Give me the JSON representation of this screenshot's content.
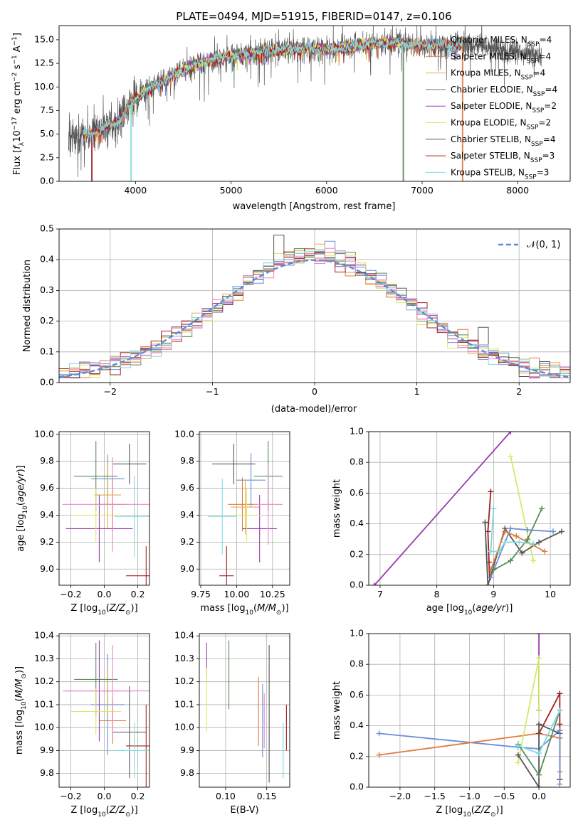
{
  "chart_data": [
    {
      "id": "spectrum",
      "type": "line",
      "title": "PLATE=0494, MJD=51915, FIBERID=0147, z=0.106",
      "xlabel": "wavelength [Angstrom, rest frame]",
      "ylabel": "Flux [f_λ 10^-17 erg cm^-2 s^-1 A^-1]",
      "xlim": [
        3200,
        8550
      ],
      "ylim": [
        0,
        16.5
      ],
      "xticks": [
        4000,
        5000,
        6000,
        7000,
        8000
      ],
      "yticks": [
        0.0,
        2.5,
        5.0,
        7.5,
        10.0,
        12.5,
        15.0
      ],
      "grid": false,
      "legend_position": "right",
      "spectrum_anchor_x": [
        3450,
        3600,
        3800,
        4000,
        4200,
        4400,
        4600,
        4800,
        5000,
        5200,
        5400,
        5600,
        5800,
        6000,
        6200,
        6400,
        6600,
        6800,
        7000,
        7200,
        7400,
        7600,
        7800,
        8000,
        8200,
        8400
      ],
      "spectrum_anchor_y": [
        4.8,
        5.3,
        6.2,
        8.8,
        10.2,
        11.3,
        12.2,
        12.9,
        13.3,
        13.5,
        13.8,
        14.0,
        14.1,
        14.0,
        14.2,
        14.5,
        14.7,
        14.6,
        14.4,
        14.4,
        14.5,
        14.3,
        14.0,
        13.7,
        13.5,
        13.3
      ],
      "series": [
        {
          "name": "Chabrier MILES",
          "nssp": "4",
          "color": "#6a8fd8",
          "x_range": [
            3450,
            7400
          ],
          "dip": null
        },
        {
          "name": "Salpeter MILES",
          "nssp": "4",
          "color": "#e07a3d",
          "x_range": [
            3450,
            7420
          ],
          "dip": 7420
        },
        {
          "name": "Kroupa MILES",
          "nssp": "4",
          "color": "#e8a948",
          "x_range": [
            3450,
            7420
          ],
          "dip": null
        },
        {
          "name": "Chabrier ELODIE",
          "nssp": "4",
          "color": "#5a8a5a",
          "x_range": [
            3900,
            6800
          ],
          "dip": 6800
        },
        {
          "name": "Salpeter ELODIE",
          "nssp": "2",
          "color": "#9a3aac",
          "x_range": [
            3900,
            6800
          ],
          "dip": null
        },
        {
          "name": "Kroupa ELODIE",
          "nssp": "2",
          "color": "#d8e86a",
          "x_range": [
            3900,
            6800
          ],
          "dip": 3900
        },
        {
          "name": "Chabrier STELIB",
          "nssp": "4",
          "color": "#555555",
          "x_range": [
            3300,
            8250
          ],
          "dip": null
        },
        {
          "name": "Salpeter STELIB",
          "nssp": "3",
          "color": "#a02020",
          "x_range": [
            3450,
            7420
          ],
          "dip": 3540
        },
        {
          "name": "Kroupa STELIB",
          "nssp": "3",
          "color": "#7fd8e0",
          "x_range": [
            3450,
            7420
          ],
          "dip": 3950
        }
      ]
    },
    {
      "id": "residuals",
      "type": "histogram",
      "xlabel": "(data-model)/error",
      "ylabel": "Normed distribution",
      "xlim": [
        -2.5,
        2.5
      ],
      "ylim": [
        0,
        0.5
      ],
      "xticks": [
        -2,
        -1,
        0,
        1,
        2
      ],
      "yticks": [
        0.0,
        0.1,
        0.2,
        0.3,
        0.4,
        0.5
      ],
      "grid": true,
      "legend_position": "top-right",
      "legend_label": "𝒩(0, 1)",
      "bin_width": 0.1,
      "bin_start": -2.5,
      "highlights": [
        {
          "color": "#555555",
          "x": -0.35,
          "y": 0.48
        },
        {
          "color": "#6a8fd8",
          "x": 0.15,
          "y": 0.46
        },
        {
          "color": "#555555",
          "x": 1.65,
          "y": 0.18
        }
      ]
    },
    {
      "id": "age-vs-z",
      "type": "errorbar",
      "xlabel": "Z [log10(Z/Z☉)]",
      "ylabel": "age [log10(age/yr)]",
      "xlim": [
        -0.27,
        0.27
      ],
      "ylim": [
        8.88,
        10.02
      ],
      "xticks": [
        -0.2,
        0.0,
        0.2
      ],
      "yticks": [
        9.0,
        9.2,
        9.4,
        9.6,
        9.8,
        10.0
      ],
      "points": [
        {
          "color": "#6a8fd8",
          "x": 0.02,
          "xerr": 0.1,
          "y": 9.67,
          "yerr": 0.18
        },
        {
          "color": "#e07a3d",
          "x": 0.05,
          "xerr": 0.08,
          "y": 9.48,
          "yerr": 0.2
        },
        {
          "color": "#e8a948",
          "x": 0.02,
          "xerr": 0.08,
          "y": 9.55,
          "yerr": 0.25
        },
        {
          "color": "#5a8a5a",
          "x": -0.05,
          "xerr": 0.13,
          "y": 9.69,
          "yerr": 0.26
        },
        {
          "color": "#9a3aac",
          "x": -0.03,
          "xerr": 0.2,
          "y": 9.3,
          "yerr": 0.25
        },
        {
          "color": "#d8e86a",
          "x": -0.05,
          "xerr": 0.15,
          "y": 9.4,
          "yerr": 0.2
        },
        {
          "color": "#555555",
          "x": 0.15,
          "xerr": 0.1,
          "y": 9.78,
          "yerr": 0.15
        },
        {
          "color": "#a02020",
          "x": 0.25,
          "xerr": 0.12,
          "y": 8.95,
          "yerr": 0.22
        },
        {
          "color": "#7fd8e0",
          "x": 0.18,
          "xerr": 0.12,
          "y": 9.39,
          "yerr": 0.3
        },
        {
          "color": "#e888c8",
          "x": 0.05,
          "xerr": 0.3,
          "y": 9.48,
          "yerr": 0.35
        }
      ]
    },
    {
      "id": "age-vs-mass",
      "type": "errorbar",
      "xlabel": "mass [log10(M/M☉)]",
      "ylabel": "",
      "xlim": [
        9.74,
        10.37
      ],
      "ylim": [
        8.88,
        10.02
      ],
      "xticks": [
        9.75,
        10.0,
        10.25
      ],
      "yticks": [
        9.0,
        9.2,
        9.4,
        9.6,
        9.8,
        10.0
      ],
      "points": [
        {
          "color": "#6a8fd8",
          "x": 10.1,
          "xerr": 0.1,
          "y": 9.66,
          "yerr": 0.2
        },
        {
          "color": "#e07a3d",
          "x": 10.04,
          "xerr": 0.1,
          "y": 9.48,
          "yerr": 0.2
        },
        {
          "color": "#e8a948",
          "x": 10.06,
          "xerr": 0.1,
          "y": 9.46,
          "yerr": 0.2
        },
        {
          "color": "#5a8a5a",
          "x": 10.22,
          "xerr": 0.1,
          "y": 9.69,
          "yerr": 0.26
        },
        {
          "color": "#9a3aac",
          "x": 10.16,
          "xerr": 0.12,
          "y": 9.3,
          "yerr": 0.25
        },
        {
          "color": "#d8e86a",
          "x": 10.07,
          "xerr": 0.1,
          "y": 9.4,
          "yerr": 0.2
        },
        {
          "color": "#555555",
          "x": 9.98,
          "xerr": 0.15,
          "y": 9.78,
          "yerr": 0.15
        },
        {
          "color": "#a02020",
          "x": 9.93,
          "xerr": 0.05,
          "y": 8.95,
          "yerr": 0.22
        },
        {
          "color": "#7fd8e0",
          "x": 9.9,
          "xerr": 0.1,
          "y": 9.39,
          "yerr": 0.28
        },
        {
          "color": "#e888c8",
          "x": 10.22,
          "xerr": 0.1,
          "y": 9.48,
          "yerr": 0.3
        }
      ]
    },
    {
      "id": "mass-weight-vs-age",
      "type": "line",
      "xlabel": "age [log10(age/yr)]",
      "ylabel": "mass weight",
      "xlim": [
        6.8,
        10.35
      ],
      "ylim": [
        0,
        1.0
      ],
      "xticks": [
        7,
        8,
        9,
        10
      ],
      "yticks": [
        0.0,
        0.2,
        0.4,
        0.6,
        0.8,
        1.0
      ],
      "grid": true,
      "series": [
        {
          "color": "#9a3aac",
          "x": [
            6.9,
            9.3
          ],
          "y": [
            0.0,
            1.0
          ]
        },
        {
          "color": "#d8e86a",
          "x": [
            9.3,
            9.7
          ],
          "y": [
            0.84,
            0.16
          ]
        },
        {
          "color": "#a02020",
          "x": [
            8.95,
            8.9,
            8.92,
            8.93
          ],
          "y": [
            0.61,
            0.35,
            0.15,
            0.05
          ]
        },
        {
          "color": "#555555",
          "x": [
            8.85,
            8.9,
            9.2,
            9.5,
            9.8,
            10.2
          ],
          "y": [
            0.41,
            0.0,
            0.37,
            0.21,
            0.28,
            0.35
          ]
        },
        {
          "color": "#6a8fd8",
          "x": [
            8.95,
            9.3,
            9.6,
            10.05
          ],
          "y": [
            0.05,
            0.37,
            0.36,
            0.35
          ]
        },
        {
          "color": "#e07a3d",
          "x": [
            8.95,
            9.2,
            9.4,
            9.9
          ],
          "y": [
            0.1,
            0.35,
            0.32,
            0.22
          ]
        },
        {
          "color": "#5a8a5a",
          "x": [
            9.0,
            9.3,
            9.6,
            9.85
          ],
          "y": [
            0.1,
            0.16,
            0.3,
            0.5
          ]
        },
        {
          "color": "#7fd8e0",
          "x": [
            9.0,
            8.95,
            9.1,
            9.2,
            9.45,
            9.7
          ],
          "y": [
            0.5,
            0.22,
            0.22,
            0.28,
            0.28,
            0.27
          ]
        }
      ]
    },
    {
      "id": "mass-vs-z",
      "type": "errorbar",
      "xlabel": "Z [log10(Z/Z☉)]",
      "ylabel": "mass [log10(M/M☉)]",
      "xlim": [
        -0.27,
        0.27
      ],
      "ylim": [
        9.74,
        10.41
      ],
      "xticks": [
        -0.2,
        0.0,
        0.2
      ],
      "yticks": [
        9.8,
        9.9,
        10.0,
        10.1,
        10.2,
        10.3,
        10.4
      ],
      "points": [
        {
          "color": "#6a8fd8",
          "x": 0.02,
          "xerr": 0.1,
          "y": 10.1,
          "yerr": 0.22
        },
        {
          "color": "#e07a3d",
          "x": 0.05,
          "xerr": 0.08,
          "y": 10.03,
          "yerr": 0.1
        },
        {
          "color": "#e8a948",
          "x": 0.02,
          "xerr": 0.08,
          "y": 10.16,
          "yerr": 0.1
        },
        {
          "color": "#5a8a5a",
          "x": -0.05,
          "xerr": 0.13,
          "y": 10.21,
          "yerr": 0.16
        },
        {
          "color": "#9a3aac",
          "x": -0.03,
          "xerr": 0.2,
          "y": 10.16,
          "yerr": 0.22
        },
        {
          "color": "#d8e86a",
          "x": -0.05,
          "xerr": 0.15,
          "y": 10.07,
          "yerr": 0.1
        },
        {
          "color": "#555555",
          "x": 0.15,
          "xerr": 0.1,
          "y": 9.98,
          "yerr": 0.2
        },
        {
          "color": "#a02020",
          "x": 0.25,
          "xerr": 0.12,
          "y": 9.92,
          "yerr": 0.18
        },
        {
          "color": "#7fd8e0",
          "x": 0.18,
          "xerr": 0.12,
          "y": 9.9,
          "yerr": 0.12
        },
        {
          "color": "#e888c8",
          "x": 0.05,
          "xerr": 0.3,
          "y": 10.16,
          "yerr": 0.2
        }
      ]
    },
    {
      "id": "mass-vs-ebv",
      "type": "errorbar",
      "xlabel": "E(B-V)",
      "ylabel": "",
      "xlim": [
        0.068,
        0.178
      ],
      "ylim": [
        9.74,
        10.41
      ],
      "xticks": [
        0.1,
        0.15
      ],
      "yticks": [
        9.8,
        9.9,
        10.0,
        10.1,
        10.2,
        10.3,
        10.4
      ],
      "points": [
        {
          "color": "#9a3aac",
          "x": 0.077,
          "y": 10.3,
          "yerr": 0.07
        },
        {
          "color": "#d8e86a",
          "x": 0.077,
          "y": 10.12,
          "yerr": 0.14
        },
        {
          "color": "#5a8a5a",
          "x": 0.104,
          "y": 10.23,
          "yerr": 0.15
        },
        {
          "color": "#e07a3d",
          "x": 0.14,
          "y": 10.07,
          "yerr": 0.15
        },
        {
          "color": "#6a8fd8",
          "x": 0.145,
          "y": 10.03,
          "yerr": 0.16
        },
        {
          "color": "#e888c8",
          "x": 0.147,
          "y": 10.03,
          "yerr": 0.12
        },
        {
          "color": "#555555",
          "x": 0.153,
          "y": 10.06,
          "yerr": 0.3
        },
        {
          "color": "#7fd8e0",
          "x": 0.17,
          "y": 9.9,
          "yerr": 0.12
        },
        {
          "color": "#a02020",
          "x": 0.174,
          "y": 10.0,
          "yerr": 0.1
        }
      ]
    },
    {
      "id": "mass-weight-vs-z",
      "type": "line",
      "xlabel": "Z [log10(Z/Z☉)]",
      "ylabel": "mass weight",
      "xlim": [
        -2.45,
        0.45
      ],
      "ylim": [
        0,
        1.0
      ],
      "xticks": [
        -2.0,
        -1.5,
        -1.0,
        -0.5,
        0.0
      ],
      "yticks": [
        0.0,
        0.2,
        0.4,
        0.6,
        0.8,
        1.0
      ],
      "grid": true,
      "series": [
        {
          "color": "#6a8fd8",
          "x": [
            -2.3,
            -0.3,
            0.0,
            0.3
          ],
          "y": [
            0.35,
            0.26,
            0.25,
            0.37
          ]
        },
        {
          "color": "#e07a3d",
          "x": [
            -2.3,
            0.0,
            0.3,
            0.3
          ],
          "y": [
            0.21,
            0.35,
            0.32,
            0.1
          ]
        },
        {
          "color": "#9a3aac",
          "x": [
            0.0,
            0.0
          ],
          "y": [
            1.0,
            0.5
          ]
        },
        {
          "color": "#d8e86a",
          "x": [
            -0.3,
            0.0,
            0.0
          ],
          "y": [
            0.16,
            0.84,
            0.5
          ]
        },
        {
          "color": "#a02020",
          "x": [
            0.0,
            0.3,
            0.3,
            0.3
          ],
          "y": [
            0.35,
            0.61,
            0.41,
            0.05
          ]
        },
        {
          "color": "#555555",
          "x": [
            -0.3,
            0.0,
            0.0,
            0.3
          ],
          "y": [
            0.21,
            0.0,
            0.41,
            0.35
          ]
        },
        {
          "color": "#5a8a5a",
          "x": [
            -0.3,
            0.0,
            0.3
          ],
          "y": [
            0.28,
            0.08,
            0.5
          ]
        },
        {
          "color": "#7fd8e0",
          "x": [
            -0.3,
            0.0,
            0.3
          ],
          "y": [
            0.27,
            0.22,
            0.5
          ]
        },
        {
          "color": "#6a8fd8",
          "x": [
            0.3,
            0.3
          ],
          "y": [
            0.02,
            0.37
          ]
        }
      ]
    }
  ]
}
